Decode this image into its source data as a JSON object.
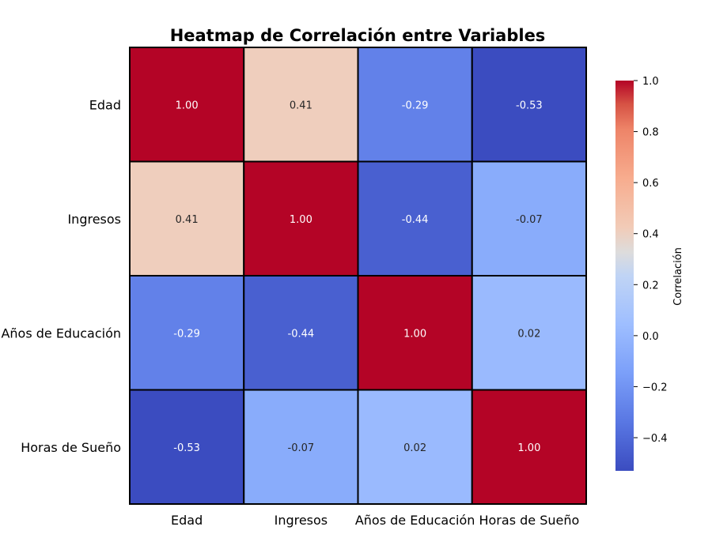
{
  "chart_data": {
    "type": "heatmap",
    "title": "Heatmap de Correlación entre Variables",
    "x_categories": [
      "Edad",
      "Ingresos",
      "Años de Educación",
      "Horas de Sueño"
    ],
    "y_categories": [
      "Edad",
      "Ingresos",
      "Años de Educación",
      "Horas de Sueño"
    ],
    "values": [
      [
        1.0,
        0.41,
        -0.29,
        -0.53
      ],
      [
        0.41,
        1.0,
        -0.44,
        -0.07
      ],
      [
        -0.29,
        -0.44,
        1.0,
        0.02
      ],
      [
        -0.53,
        -0.07,
        0.02,
        1.0
      ]
    ],
    "value_format": "0.00",
    "colormap": "coolwarm",
    "colorbar": {
      "label": "Correlación",
      "vmin": -0.53,
      "vmax": 1.0,
      "ticks": [
        1.0,
        0.8,
        0.6,
        0.4,
        0.2,
        0.0,
        -0.2,
        -0.4
      ],
      "tick_labels": [
        "1.0",
        "0.8",
        "0.6",
        "0.4",
        "0.2",
        "0.0",
        "−0.2",
        "−0.4"
      ]
    },
    "cell_border_color": "#000000"
  }
}
